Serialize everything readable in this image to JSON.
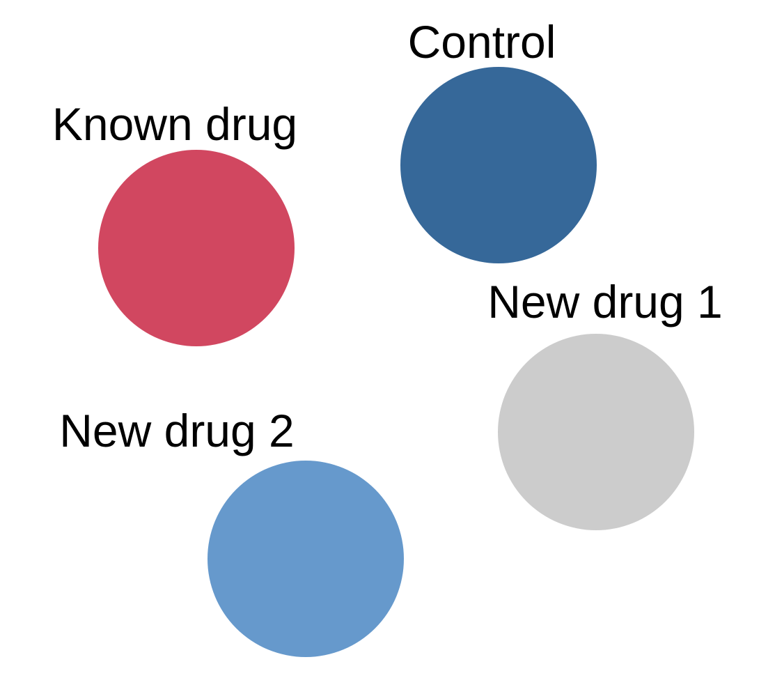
{
  "nodes": {
    "control": {
      "label": "Control",
      "color": "#366899"
    },
    "known_drug": {
      "label": "Known drug",
      "color": "#d14760"
    },
    "new_drug_1": {
      "label": "New drug 1",
      "color": "#cccccc"
    },
    "new_drug_2": {
      "label": "New drug 2",
      "color": "#6699cc"
    }
  }
}
